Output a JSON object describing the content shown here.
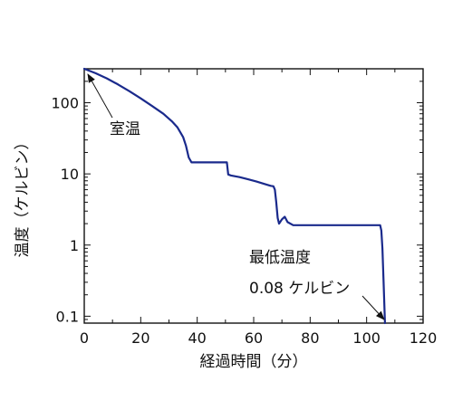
{
  "chart_data": {
    "type": "line",
    "xlabel": "経過時間（分）",
    "ylabel": "温度（ケルビン）",
    "xlim": [
      0,
      120
    ],
    "ylim": [
      0.08,
      300
    ],
    "yscale": "log",
    "grid": false,
    "x_ticks": [
      0,
      20,
      40,
      60,
      80,
      100,
      120
    ],
    "x_tick_labels": [
      "0",
      "20",
      "40",
      "60",
      "80",
      "100",
      "120"
    ],
    "y_ticks": [
      0.1,
      1,
      10,
      100
    ],
    "y_tick_labels": [
      "0.1",
      "1",
      "10",
      "100"
    ],
    "series": [
      {
        "color": "#1a2a8c",
        "x": [
          0,
          4,
          8,
          12,
          16,
          20,
          24,
          28,
          31,
          33,
          35,
          36,
          37,
          38,
          40,
          44,
          48,
          50.5,
          51,
          52,
          55,
          58,
          61,
          64,
          66,
          67,
          67.5,
          68,
          68.5,
          69,
          70,
          71,
          72,
          74,
          80,
          90,
          100,
          104,
          104.8,
          105.2,
          105.6,
          106,
          106.5
        ],
        "y": [
          300,
          260,
          220,
          180,
          145,
          115,
          90,
          70,
          55,
          45,
          33,
          25,
          17,
          14.5,
          14.5,
          14.5,
          14.5,
          14.5,
          9.8,
          9.5,
          9.0,
          8.4,
          7.8,
          7.2,
          6.8,
          6.7,
          6.0,
          4.0,
          2.4,
          2.0,
          2.3,
          2.5,
          2.1,
          1.9,
          1.9,
          1.9,
          1.9,
          1.9,
          1.9,
          1.6,
          0.9,
          0.3,
          0.08
        ]
      }
    ],
    "annotations": [
      {
        "text": "室温",
        "x": 0,
        "y": 300
      },
      {
        "lines": [
          "最低温度",
          "0.08 ケルビン"
        ],
        "x": 106.5,
        "y": 0.08
      }
    ]
  }
}
